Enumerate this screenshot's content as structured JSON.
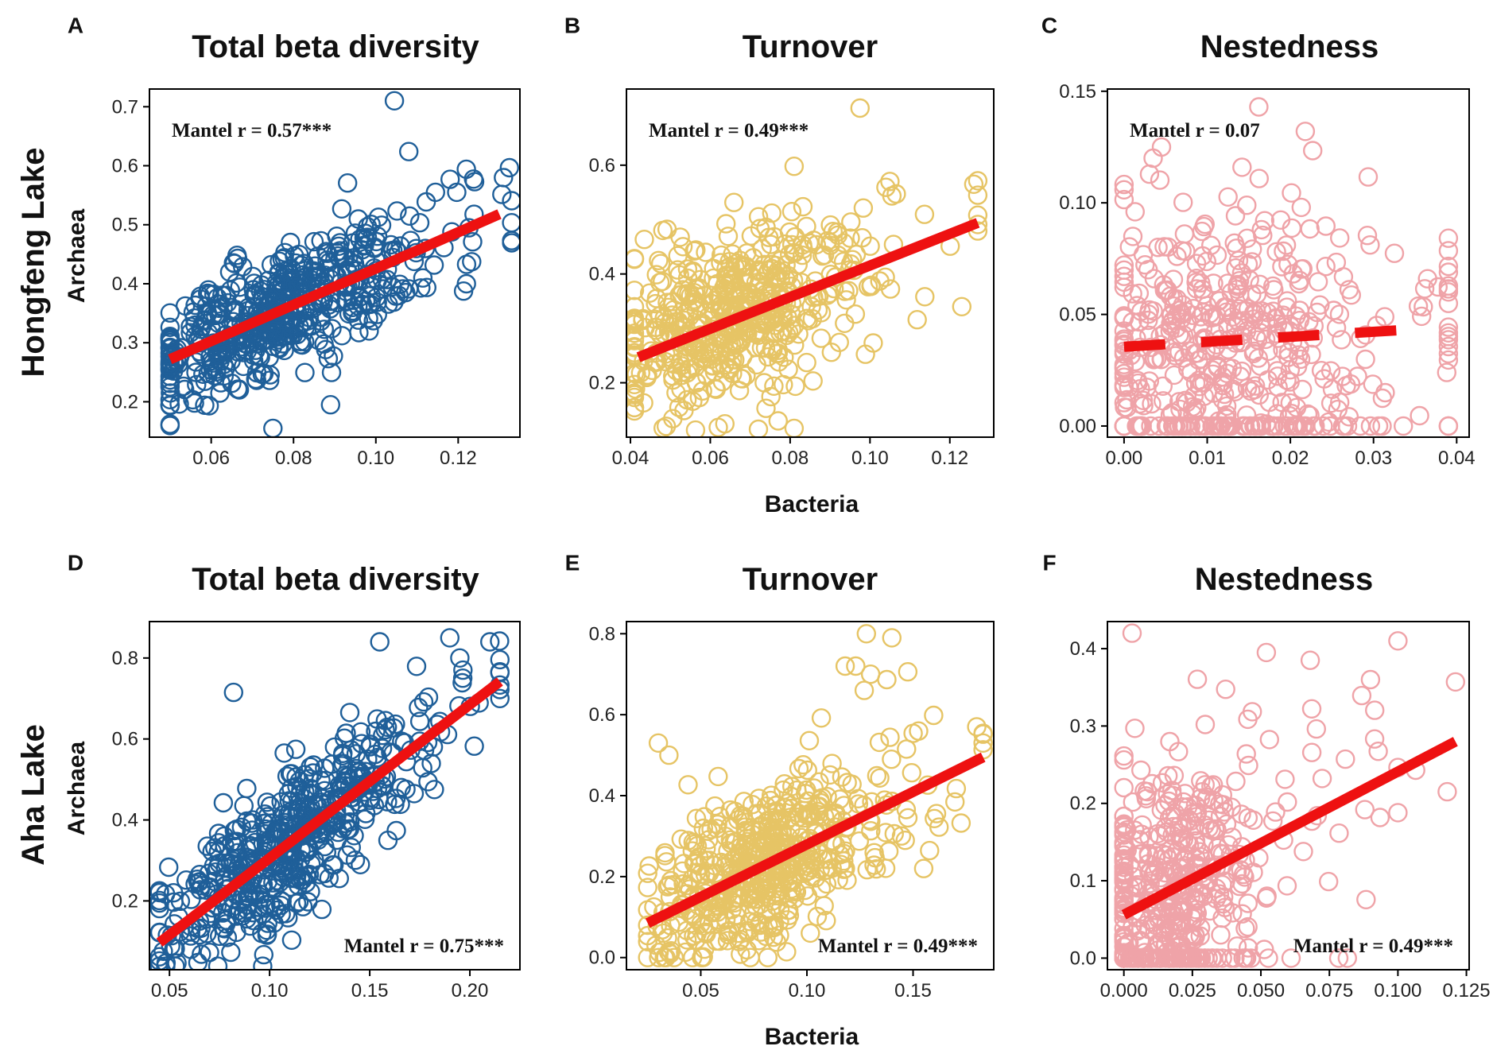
{
  "figure": {
    "row_labels": [
      "Hongfeng Lake",
      "Aha Lake"
    ],
    "x_axis_label": "Bacteria",
    "y_axis_label": "Archaea",
    "colors": {
      "total": "#1f5f99",
      "turnover": "#e6c465",
      "nestedness": "#efa3a8",
      "fit_line": "#ee1111"
    }
  },
  "chart_data": [
    {
      "panel": "A",
      "type": "scatter",
      "title": "Total beta diversity",
      "xlabel": "Bacteria",
      "ylabel": "Archaea",
      "xlim": [
        0.045,
        0.135
      ],
      "ylim": [
        0.14,
        0.73
      ],
      "x_ticks": [
        0.06,
        0.08,
        0.1,
        0.12
      ],
      "x_tick_labels": [
        "0.06",
        "0.08",
        "0.10",
        "0.12"
      ],
      "y_ticks": [
        0.2,
        0.3,
        0.4,
        0.5,
        0.6,
        0.7
      ],
      "y_tick_labels": [
        "0.2",
        "0.3",
        "0.4",
        "0.5",
        "0.6",
        "0.7"
      ],
      "annotation": "Mantel r = 0.57***",
      "annotation_position": "top-left",
      "fit": {
        "x": [
          0.05,
          0.13
        ],
        "y": [
          0.272,
          0.518
        ],
        "style": "solid"
      },
      "cloud": {
        "n": 520,
        "x_mean": 0.072,
        "x_sd": 0.015,
        "x_min": 0.05,
        "x_max": 0.133,
        "slope": 3.07,
        "intercept": 0.118,
        "noise_sd": 0.05,
        "seed": 11
      },
      "points": [
        [
          0.1045,
          0.71
        ],
        [
          0.131,
          0.58
        ],
        [
          0.124,
          0.573
        ],
        [
          0.108,
          0.624
        ],
        [
          0.075,
          0.155
        ],
        [
          0.089,
          0.195
        ],
        [
          0.122,
          0.4
        ]
      ],
      "color": "#1f5f99"
    },
    {
      "panel": "B",
      "type": "scatter",
      "title": "Turnover",
      "xlabel": "Bacteria",
      "ylabel": "Archaea",
      "xlim": [
        0.039,
        0.131
      ],
      "ylim": [
        0.1,
        0.74
      ],
      "x_ticks": [
        0.04,
        0.06,
        0.08,
        0.1,
        0.12
      ],
      "x_tick_labels": [
        "0.04",
        "0.06",
        "0.08",
        "0.10",
        "0.12"
      ],
      "y_ticks": [
        0.2,
        0.4,
        0.6
      ],
      "y_tick_labels": [
        "0.2",
        "0.4",
        "0.6"
      ],
      "annotation": "Mantel r = 0.49***",
      "annotation_position": "top-left",
      "fit": {
        "x": [
          0.042,
          0.127
        ],
        "y": [
          0.247,
          0.494
        ],
        "style": "solid"
      },
      "cloud": {
        "n": 520,
        "x_mean": 0.062,
        "x_sd": 0.013,
        "x_min": 0.041,
        "x_max": 0.127,
        "slope": 2.9,
        "intercept": 0.126,
        "noise_sd": 0.075,
        "seed": 23
      },
      "points": [
        [
          0.0975,
          0.705
        ],
        [
          0.126,
          0.565
        ],
        [
          0.081,
          0.598
        ],
        [
          0.123,
          0.34
        ],
        [
          0.077,
          0.13
        ],
        [
          0.062,
          0.118
        ],
        [
          0.105,
          0.57
        ]
      ],
      "color": "#e6c465"
    },
    {
      "panel": "C",
      "type": "scatter",
      "title": "Nestedness",
      "xlabel": "Bacteria",
      "ylabel": "Archaea",
      "xlim": [
        -0.002,
        0.0415
      ],
      "ylim": [
        -0.005,
        0.151
      ],
      "x_ticks": [
        0.0,
        0.01,
        0.02,
        0.03,
        0.04
      ],
      "x_tick_labels": [
        "0.00",
        "0.01",
        "0.02",
        "0.03",
        "0.04"
      ],
      "y_ticks": [
        0.0,
        0.05,
        0.1,
        0.15
      ],
      "y_tick_labels": [
        "0.00",
        "0.05",
        "0.10",
        "0.15"
      ],
      "annotation": "Mantel r = 0.07",
      "annotation_position": "top-left",
      "fit": {
        "x": [
          0.0,
          0.0357
        ],
        "y": [
          0.0355,
          0.0435
        ],
        "style": "dashed"
      },
      "cloud": {
        "n": 500,
        "x_mean": 0.01,
        "x_sd": 0.009,
        "x_min": 0.0,
        "x_max": 0.039,
        "slope": 0.22,
        "intercept": 0.0355,
        "noise_sd": 0.03,
        "y_min": 0.0,
        "seed": 37,
        "floor_frac": 0.12
      },
      "points": [
        [
          0.0162,
          0.143
        ],
        [
          0.0218,
          0.132
        ],
        [
          0.0045,
          0.125
        ],
        [
          0.0365,
          0.066
        ],
        [
          0.0388,
          0.024
        ],
        [
          0.0035,
          0.12
        ]
      ],
      "color": "#efa3a8"
    },
    {
      "panel": "D",
      "type": "scatter",
      "title": "Total beta diversity",
      "xlabel": "Bacteria",
      "ylabel": "Archaea",
      "xlim": [
        0.04,
        0.225
      ],
      "ylim": [
        0.03,
        0.89
      ],
      "x_ticks": [
        0.05,
        0.1,
        0.15,
        0.2
      ],
      "x_tick_labels": [
        "0.05",
        "0.10",
        "0.15",
        "0.20"
      ],
      "y_ticks": [
        0.2,
        0.4,
        0.6,
        0.8
      ],
      "y_tick_labels": [
        "0.2",
        "0.4",
        "0.6",
        "0.8"
      ],
      "annotation": "Mantel r = 0.75***",
      "annotation_position": "bottom-right",
      "fit": {
        "x": [
          0.045,
          0.215
        ],
        "y": [
          0.097,
          0.742
        ],
        "style": "solid"
      },
      "cloud": {
        "n": 520,
        "x_mean": 0.105,
        "x_sd": 0.03,
        "x_min": 0.045,
        "x_max": 0.215,
        "slope": 3.79,
        "intercept": -0.074,
        "noise_sd": 0.085,
        "seed": 53
      },
      "points": [
        [
          0.155,
          0.84
        ],
        [
          0.19,
          0.85
        ],
        [
          0.21,
          0.84
        ],
        [
          0.215,
          0.7
        ],
        [
          0.082,
          0.715
        ],
        [
          0.052,
          0.22
        ],
        [
          0.195,
          0.8
        ]
      ],
      "color": "#1f5f99"
    },
    {
      "panel": "E",
      "type": "scatter",
      "title": "Turnover",
      "xlabel": "Bacteria",
      "ylabel": "Archaea",
      "xlim": [
        0.015,
        0.188
      ],
      "ylim": [
        -0.03,
        0.83
      ],
      "x_ticks": [
        0.05,
        0.1,
        0.15
      ],
      "x_tick_labels": [
        "0.05",
        "0.10",
        "0.15"
      ],
      "y_ticks": [
        0.0,
        0.2,
        0.4,
        0.6,
        0.8
      ],
      "y_tick_labels": [
        "0.0",
        "0.2",
        "0.4",
        "0.6",
        "0.8"
      ],
      "annotation": "Mantel r = 0.49***",
      "annotation_position": "bottom-right",
      "fit": {
        "x": [
          0.025,
          0.183
        ],
        "y": [
          0.085,
          0.495
        ],
        "style": "solid"
      },
      "cloud": {
        "n": 520,
        "x_mean": 0.075,
        "x_sd": 0.025,
        "x_min": 0.025,
        "x_max": 0.183,
        "slope": 2.6,
        "intercept": 0.02,
        "noise_sd": 0.1,
        "y_min": 0.0,
        "seed": 71
      },
      "points": [
        [
          0.03,
          0.53
        ],
        [
          0.035,
          0.5
        ],
        [
          0.128,
          0.8
        ],
        [
          0.14,
          0.79
        ],
        [
          0.18,
          0.57
        ],
        [
          0.183,
          0.53
        ],
        [
          0.155,
          0.22
        ],
        [
          0.123,
          0.72
        ],
        [
          0.13,
          0.7
        ],
        [
          0.118,
          0.72
        ],
        [
          0.127,
          0.66
        ]
      ],
      "color": "#e6c465"
    },
    {
      "panel": "F",
      "type": "scatter",
      "title": "Nestedness",
      "xlabel": "Bacteria",
      "ylabel": "Archaea",
      "xlim": [
        -0.006,
        0.126
      ],
      "ylim": [
        -0.015,
        0.435
      ],
      "x_ticks": [
        0.0,
        0.025,
        0.05,
        0.075,
        0.1,
        0.125
      ],
      "x_tick_labels": [
        "0.000",
        "0.025",
        "0.050",
        "0.075",
        "0.100",
        "0.125"
      ],
      "y_ticks": [
        0.0,
        0.1,
        0.2,
        0.3,
        0.4
      ],
      "y_tick_labels": [
        "0.0",
        "0.1",
        "0.2",
        "0.3",
        "0.4"
      ],
      "annotation": "Mantel r = 0.49***",
      "annotation_position": "bottom-right",
      "fit": {
        "x": [
          0.0,
          0.121
        ],
        "y": [
          0.056,
          0.28
        ],
        "style": "solid"
      },
      "cloud": {
        "n": 500,
        "x_mean": 0.014,
        "x_sd": 0.017,
        "x_min": 0.0,
        "x_max": 0.121,
        "slope": 1.85,
        "intercept": 0.056,
        "noise_sd": 0.075,
        "y_min": 0.0,
        "seed": 89,
        "floor_frac": 0.12
      },
      "points": [
        [
          0.003,
          0.42
        ],
        [
          0.1,
          0.41
        ],
        [
          0.121,
          0.357
        ],
        [
          0.118,
          0.215
        ],
        [
          0.052,
          0.395
        ],
        [
          0.068,
          0.385
        ],
        [
          0.09,
          0.36
        ],
        [
          0.1,
          0.188
        ],
        [
          0.004,
          0.297
        ]
      ],
      "color": "#efa3a8"
    }
  ]
}
